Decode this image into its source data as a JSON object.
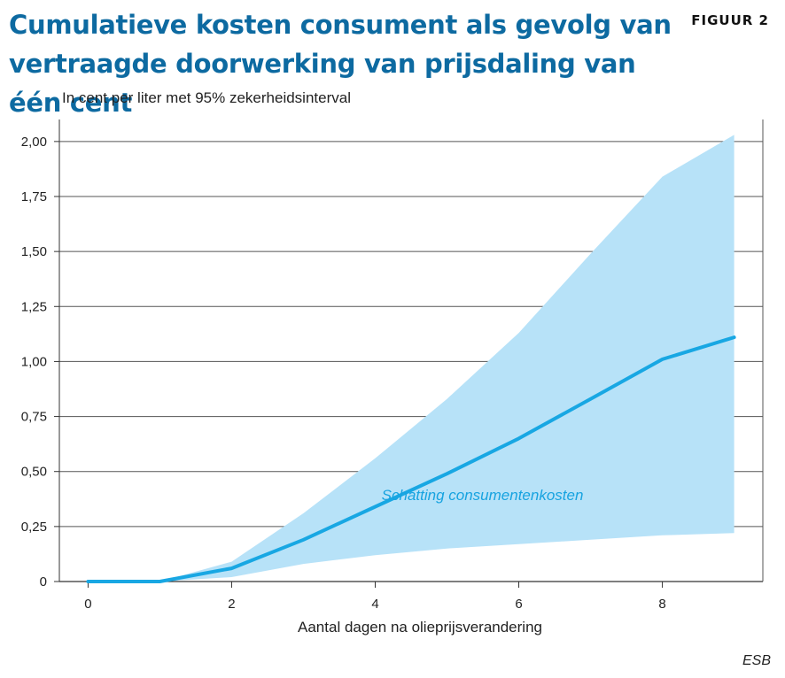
{
  "header": {
    "title": "Cumulatieve kosten consument als gevolg van vertraagde doorwerking van prijsdaling van één cent",
    "figure_label": "FIGUUR 2",
    "subtitle": "In cent per liter met 95% zekerheidsinterval"
  },
  "source": "ESB",
  "colors": {
    "title": "#0d6aa1",
    "line": "#18a7e3",
    "band": "#b7e2f8",
    "grid": "#555555"
  },
  "chart_data": {
    "type": "line",
    "title": "Cumulatieve kosten consument als gevolg van vertraagde doorwerking van prijsdaling van één cent",
    "xlabel": "Aantal dagen na olieprijsverandering",
    "ylabel": "In cent per liter met 95% zekerheidsinterval",
    "xlim": [
      -0.4,
      9.4
    ],
    "ylim": [
      0,
      2.1
    ],
    "x_ticks": [
      0,
      2,
      4,
      6,
      8
    ],
    "x_tick_labels": [
      "0",
      "2",
      "4",
      "6",
      "8"
    ],
    "y_ticks": [
      0,
      0.25,
      0.5,
      0.75,
      1.0,
      1.25,
      1.5,
      1.75,
      2.0
    ],
    "y_tick_labels": [
      "0",
      "0,25",
      "0,50",
      "0,75",
      "1,00",
      "1,25",
      "1,50",
      "1,75",
      "2,00"
    ],
    "grid": true,
    "series": [
      {
        "name": "Schatting consumentenkosten",
        "x": [
          0,
          1,
          2,
          3,
          4,
          5,
          6,
          7,
          8,
          9
        ],
        "values": [
          0,
          0,
          0.06,
          0.19,
          0.34,
          0.49,
          0.65,
          0.83,
          1.01,
          1.11
        ],
        "lower": [
          0,
          0,
          0.02,
          0.08,
          0.12,
          0.15,
          0.17,
          0.19,
          0.21,
          0.22
        ],
        "upper": [
          0,
          0,
          0.09,
          0.31,
          0.56,
          0.83,
          1.13,
          1.49,
          1.84,
          2.03
        ]
      }
    ],
    "annotation": {
      "text": "Schatting consumentenkosten",
      "x": 6.9,
      "y": 0.37
    }
  }
}
